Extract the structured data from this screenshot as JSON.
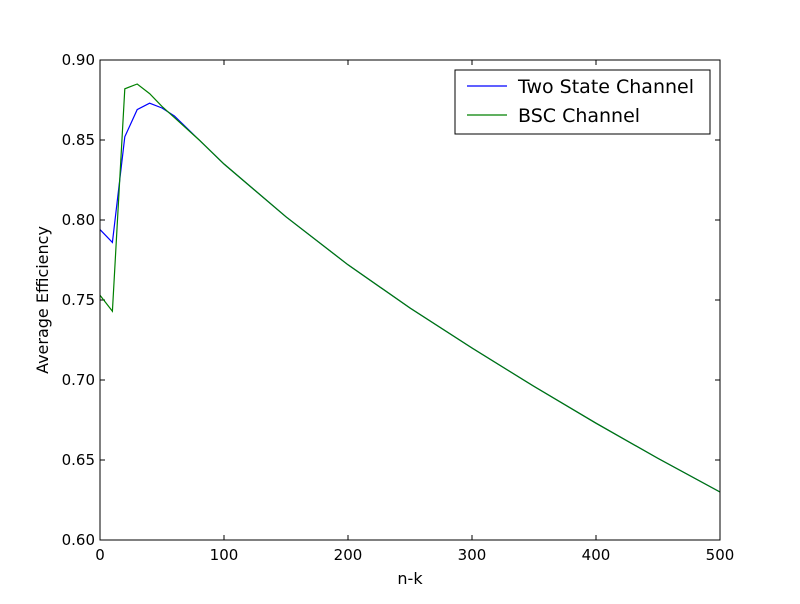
{
  "chart_data": {
    "type": "line",
    "title": "",
    "xlabel": "n-k",
    "ylabel": "Average Efficiency",
    "xlim": [
      0,
      500
    ],
    "ylim": [
      0.6,
      0.9
    ],
    "xticks": [
      0,
      100,
      200,
      300,
      400,
      500
    ],
    "xtick_labels": [
      "0",
      "100",
      "200",
      "300",
      "400",
      "500"
    ],
    "yticks": [
      0.6,
      0.65,
      0.7,
      0.75,
      0.8,
      0.85,
      0.9
    ],
    "ytick_labels": [
      "0.60",
      "0.65",
      "0.70",
      "0.75",
      "0.80",
      "0.85",
      "0.90"
    ],
    "grid": false,
    "legend_position": "top-right",
    "series": [
      {
        "name": "Two State Channel",
        "color": "#0000ff",
        "x": [
          0,
          10,
          20,
          30,
          40,
          50,
          60,
          80,
          100,
          150,
          200,
          250,
          300,
          350,
          400,
          450,
          500
        ],
        "y": [
          0.794,
          0.786,
          0.852,
          0.869,
          0.873,
          0.87,
          0.865,
          0.85,
          0.835,
          0.802,
          0.772,
          0.745,
          0.72,
          0.696,
          0.673,
          0.651,
          0.63
        ]
      },
      {
        "name": "BSC Channel",
        "color": "#008000",
        "x": [
          0,
          10,
          20,
          30,
          40,
          50,
          60,
          80,
          100,
          150,
          200,
          250,
          300,
          350,
          400,
          450,
          500
        ],
        "y": [
          0.753,
          0.743,
          0.882,
          0.885,
          0.879,
          0.871,
          0.864,
          0.85,
          0.835,
          0.802,
          0.772,
          0.745,
          0.72,
          0.696,
          0.673,
          0.651,
          0.63
        ]
      }
    ]
  }
}
